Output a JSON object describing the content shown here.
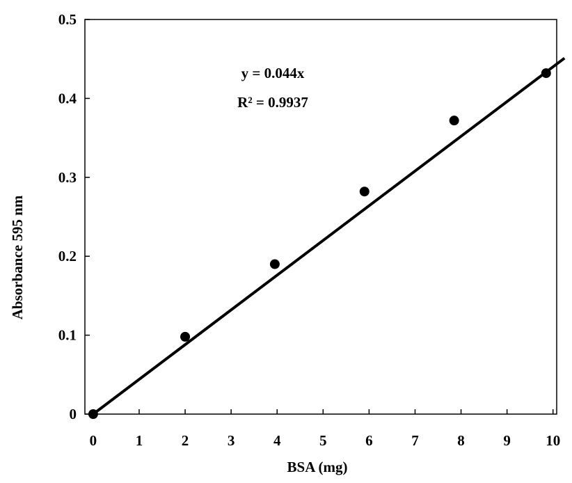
{
  "chart_data": {
    "type": "scatter",
    "x_label": "BSA (mg)",
    "y_label": "Absorbance 595 nm",
    "annotations": [
      "y = 0.044x",
      "R² = 0.9937"
    ],
    "series": [
      {
        "color": "#000000",
        "x": [
          0,
          2,
          3.95,
          5.9,
          7.85,
          9.85
        ],
        "values": [
          0,
          0.098,
          0.19,
          0.282,
          0.372,
          0.432
        ]
      }
    ],
    "trendline": {
      "color": "#000000",
      "x": [
        0,
        10.25
      ],
      "values": [
        0,
        0.451
      ]
    },
    "xlim": [
      -0.18,
      10.08
    ],
    "xticks": [
      0,
      1,
      2,
      3,
      4,
      5,
      6,
      7,
      8,
      9,
      10
    ],
    "ylim": [
      0,
      0.5
    ],
    "yticks": [
      0,
      0.1,
      0.2,
      0.3,
      0.4,
      0.5
    ],
    "grid": false
  }
}
